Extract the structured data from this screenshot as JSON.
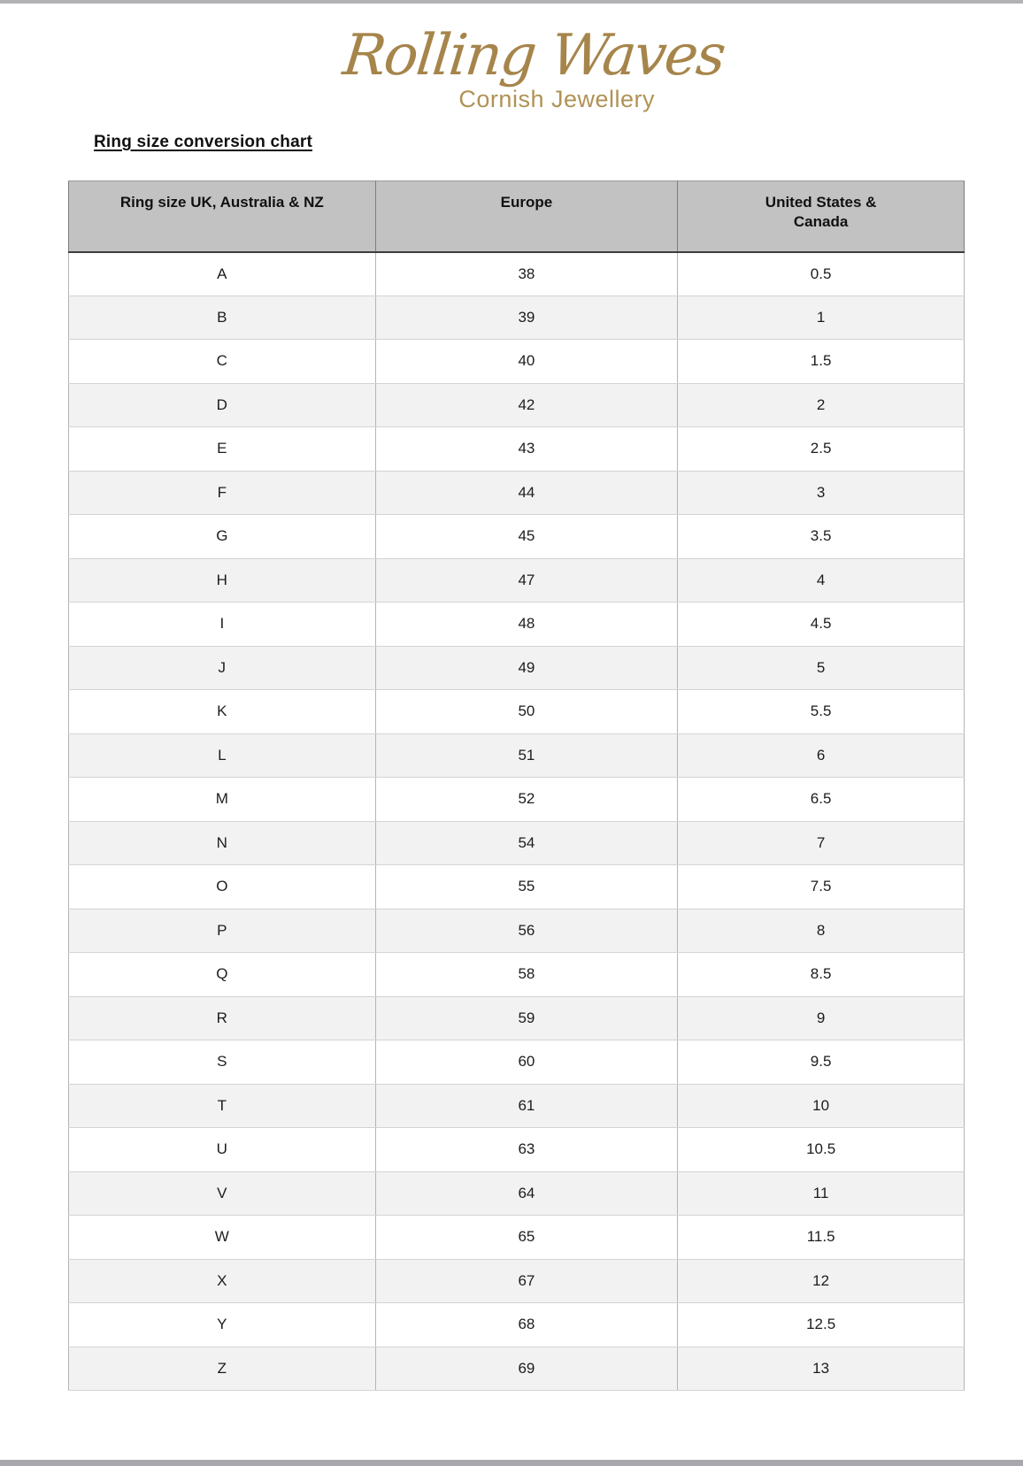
{
  "logo": {
    "brand": "Rolling Waves",
    "tagline": "Cornish Jewellery",
    "brand_color": "#a6854b",
    "tagline_color": "#b09254"
  },
  "heading": "Ring size conversion chart",
  "table": {
    "columns": [
      "Ring size UK, Australia & NZ",
      "Europe",
      "United States &\nCanada"
    ],
    "rows": [
      [
        "A",
        "38",
        "0.5"
      ],
      [
        "B",
        "39",
        "1"
      ],
      [
        "C",
        "40",
        "1.5"
      ],
      [
        "D",
        "42",
        "2"
      ],
      [
        "E",
        "43",
        "2.5"
      ],
      [
        "F",
        "44",
        "3"
      ],
      [
        "G",
        "45",
        "3.5"
      ],
      [
        "H",
        "47",
        "4"
      ],
      [
        "I",
        "48",
        "4.5"
      ],
      [
        "J",
        "49",
        "5"
      ],
      [
        "K",
        "50",
        "5.5"
      ],
      [
        "L",
        "51",
        "6"
      ],
      [
        "M",
        "52",
        "6.5"
      ],
      [
        "N",
        "54",
        "7"
      ],
      [
        "O",
        "55",
        "7.5"
      ],
      [
        "P",
        "56",
        "8"
      ],
      [
        "Q",
        "58",
        "8.5"
      ],
      [
        "R",
        "59",
        "9"
      ],
      [
        "S",
        "60",
        "9.5"
      ],
      [
        "T",
        "61",
        "10"
      ],
      [
        "U",
        "63",
        "10.5"
      ],
      [
        "V",
        "64",
        "11"
      ],
      [
        "W",
        "65",
        "11.5"
      ],
      [
        "X",
        "67",
        "12"
      ],
      [
        "Y",
        "68",
        "12.5"
      ],
      [
        "Z",
        "69",
        "13"
      ]
    ]
  },
  "colors": {
    "header_bg": "#c2c2c2",
    "alt_row_bg": "#f2f2f3",
    "page_edge": "#b2b2b5"
  }
}
